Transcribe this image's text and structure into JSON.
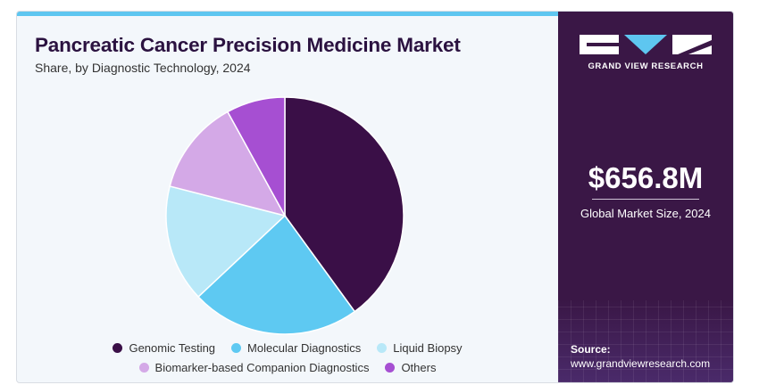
{
  "chart_data": {
    "type": "pie",
    "title": "Pancreatic Cancer Precision Medicine Market",
    "subtitle": "Share, by Diagnostic Technology, 2024",
    "slices": [
      {
        "name": "Genomic Testing",
        "value": 40,
        "color": "#3a0f47"
      },
      {
        "name": "Molecular Diagnostics",
        "value": 23,
        "color": "#5ec9f2"
      },
      {
        "name": "Liquid Biopsy",
        "value": 16,
        "color": "#b8e8f8"
      },
      {
        "name": "Biomarker-based Companion Diagnostics",
        "value": 13,
        "color": "#d4a9e7"
      },
      {
        "name": "Others",
        "value": 8,
        "color": "#a64fd2"
      }
    ],
    "legend_position": "bottom"
  },
  "sidebar": {
    "brand": "GRAND VIEW RESEARCH",
    "market_size": "$656.8M",
    "market_label": "Global Market Size, 2024",
    "source_label": "Source:",
    "source_url": "www.grandviewresearch.com"
  }
}
